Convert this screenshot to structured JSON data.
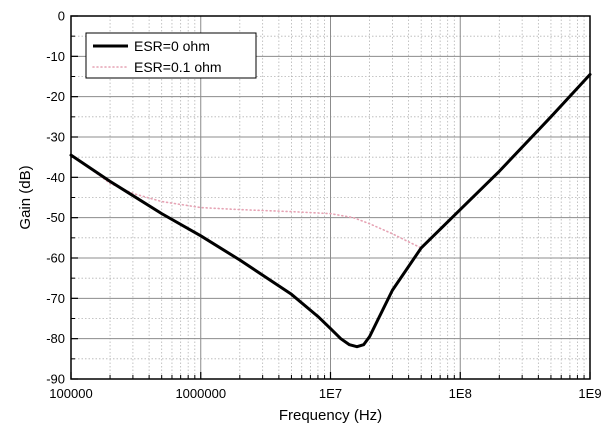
{
  "chart_data": {
    "type": "line",
    "title": "",
    "xlabel": "Frequency (Hz)",
    "ylabel": "Gain (dB)",
    "xscale": "log",
    "xlim": [
      100000,
      1000000000
    ],
    "ylim": [
      -90,
      0
    ],
    "x_ticks": [
      100000,
      1000000,
      10000000,
      100000000,
      1000000000
    ],
    "x_tick_labels": [
      "100000",
      "1000000",
      "1E7",
      "1E8",
      "1E9"
    ],
    "y_ticks": [
      0,
      -10,
      -20,
      -30,
      -40,
      -50,
      -60,
      -70,
      -80,
      -90
    ],
    "y_tick_labels": [
      "0",
      "-10",
      "-20",
      "-30",
      "-40",
      "-50",
      "-60",
      "-70",
      "-80",
      "-90"
    ],
    "grid": true,
    "minor_grid": true,
    "legend_position": "top-left",
    "series": [
      {
        "name": "ESR=0 ohm",
        "color": "#000000",
        "style": "solid",
        "x": [
          100000,
          200000,
          500000,
          1000000,
          2000000,
          5000000,
          8000000,
          10000000,
          12000000,
          14000000,
          16000000,
          18000000,
          20000000,
          30000000,
          50000000,
          100000000,
          200000000,
          500000000,
          1000000000
        ],
        "y": [
          -34.5,
          -41,
          -49,
          -54.5,
          -60.5,
          -69,
          -74.5,
          -77.5,
          -80,
          -81.5,
          -82,
          -81.5,
          -79.5,
          -68,
          -57.5,
          -48,
          -38.5,
          -25,
          -14.5
        ]
      },
      {
        "name": "ESR=0.1 ohm",
        "color": "#e6a3b4",
        "style": "dotted",
        "x": [
          100000,
          150000,
          200000,
          300000,
          500000,
          1000000,
          2000000,
          5000000,
          10000000,
          15000000,
          20000000,
          30000000,
          40000000,
          50000000,
          100000000,
          200000000,
          500000000,
          1000000000
        ],
        "y": [
          -34.5,
          -38.5,
          -41.5,
          -44,
          -46,
          -47.5,
          -48,
          -48.5,
          -49,
          -50,
          -51.5,
          -54,
          -56,
          -57.5,
          -48,
          -38.5,
          -25,
          -14.5
        ]
      }
    ]
  }
}
